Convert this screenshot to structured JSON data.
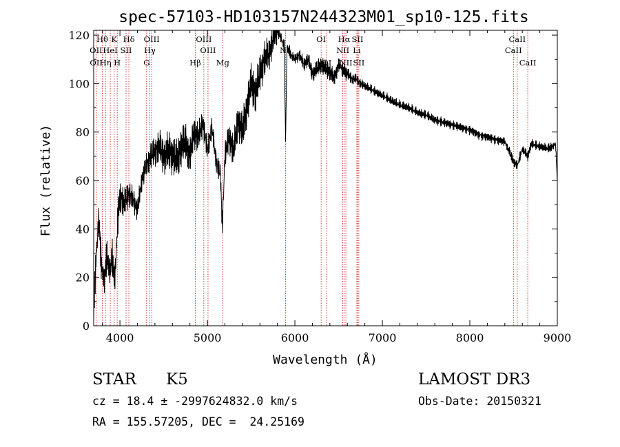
{
  "chart_data": {
    "type": "line",
    "title": "spec-57103-HD103157N244323M01_sp10-125.fits",
    "xlabel": "Wavelength (Å)",
    "ylabel": "Flux (relative)",
    "xlim": [
      3700,
      9000
    ],
    "ylim": [
      0,
      122
    ],
    "xticks": [
      4000,
      5000,
      6000,
      7000,
      8000,
      9000
    ],
    "yticks": [
      0,
      20,
      40,
      60,
      80,
      100,
      120
    ],
    "xtick_labels": [
      "4000",
      "5000",
      "6000",
      "7000",
      "8000",
      "9000"
    ],
    "ytick_labels": [
      "0",
      "20",
      "40",
      "60",
      "80",
      "100",
      "120"
    ],
    "grid": false,
    "series": [
      {
        "x": [
          3700,
          3730,
          3760,
          3790,
          3820,
          3850,
          3880,
          3910,
          3940,
          3970,
          4000,
          4050,
          4100,
          4150,
          4200,
          4250,
          4300,
          4350,
          4400,
          4450,
          4500,
          4550,
          4600,
          4650,
          4700,
          4750,
          4800,
          4850,
          4900,
          4950,
          5000,
          5050,
          5100,
          5150,
          5170,
          5200,
          5250,
          5300,
          5350,
          5400,
          5450,
          5500,
          5550,
          5600,
          5650,
          5700,
          5750,
          5800,
          5850,
          5880,
          5893,
          5910,
          5950,
          6000,
          6050,
          6100,
          6150,
          6200,
          6250,
          6300,
          6350,
          6400,
          6450,
          6500,
          6563,
          6600,
          6650,
          6700,
          6750,
          6800,
          6900,
          7000,
          7100,
          7200,
          7300,
          7400,
          7500,
          7600,
          7700,
          7800,
          7900,
          8000,
          8100,
          8200,
          8300,
          8400,
          8498,
          8542,
          8600,
          8662,
          8700,
          8800,
          8900,
          8980,
          9000
        ],
        "y": [
          5,
          30,
          44,
          25,
          18,
          30,
          22,
          28,
          18,
          40,
          54,
          50,
          55,
          52,
          48,
          60,
          66,
          70,
          72,
          74,
          70,
          72,
          71,
          68,
          74,
          76,
          70,
          80,
          78,
          84,
          72,
          82,
          68,
          62,
          40,
          70,
          78,
          72,
          85,
          80,
          90,
          100,
          96,
          104,
          110,
          112,
          118,
          122,
          118,
          115,
          75,
          115,
          112,
          110,
          112,
          108,
          110,
          104,
          106,
          108,
          106,
          105,
          102,
          108,
          105,
          104,
          102,
          102,
          100,
          99,
          97,
          95,
          93,
          91,
          90,
          88,
          87,
          85,
          84,
          83,
          82,
          81,
          79,
          78,
          77,
          76,
          68,
          66,
          73,
          70,
          75,
          74,
          73,
          75,
          60
        ]
      }
    ],
    "line_labels": [
      {
        "label": "Hθ",
        "x": 3798,
        "row": 1
      },
      {
        "label": "OII",
        "x": 3727,
        "row": 2
      },
      {
        "label": "OII",
        "x": 3729,
        "row": 3
      },
      {
        "label": "K",
        "x": 3934,
        "row": 1
      },
      {
        "label": "HeI",
        "x": 3889,
        "row": 2
      },
      {
        "label": "Hη",
        "x": 3835,
        "row": 3
      },
      {
        "label": "Hδ",
        "x": 4102,
        "row": 1
      },
      {
        "label": "SII",
        "x": 4070,
        "row": 2
      },
      {
        "label": "H",
        "x": 3969,
        "row": 3
      },
      {
        "label": "OIII",
        "x": 4363,
        "row": 1
      },
      {
        "label": "Hγ",
        "x": 4341,
        "row": 2
      },
      {
        "label": "G",
        "x": 4305,
        "row": 3
      },
      {
        "label": "OIII",
        "x": 4959,
        "row": 1
      },
      {
        "label": "OIII",
        "x": 5007,
        "row": 2
      },
      {
        "label": "Hβ",
        "x": 4861,
        "row": 3
      },
      {
        "label": "Mg",
        "x": 5175,
        "row": 3
      },
      {
        "label": "Na",
        "x": 5893,
        "row": 2
      },
      {
        "label": "OI",
        "x": 6300,
        "row": 1
      },
      {
        "label": "OI",
        "x": 6364,
        "row": 3
      },
      {
        "label": "Hα",
        "x": 6563,
        "row": 1
      },
      {
        "label": "SII",
        "x": 6716,
        "row": 1
      },
      {
        "label": "NII",
        "x": 6548,
        "row": 2
      },
      {
        "label": "Li",
        "x": 6708,
        "row": 2
      },
      {
        "label": "NII",
        "x": 6583,
        "row": 3
      },
      {
        "label": "SII",
        "x": 6731,
        "row": 3
      },
      {
        "label": "CaII",
        "x": 8542,
        "row": 1
      },
      {
        "label": "CaII",
        "x": 8498,
        "row": 2
      },
      {
        "label": "CaII",
        "x": 8662,
        "row": 3
      }
    ],
    "marker_lines_x": [
      3727,
      3798,
      3835,
      3889,
      3934,
      3969,
      4070,
      4102,
      4305,
      4341,
      4363,
      4861,
      4959,
      5007,
      5175,
      5893,
      6300,
      6364,
      6548,
      6563,
      6583,
      6708,
      6716,
      6731,
      8498,
      8542,
      8662
    ],
    "colors": {
      "spectrum": "#000000",
      "marker": "#cc0000"
    }
  },
  "info": {
    "object_class": "STAR",
    "subclass": "K5",
    "survey": "LAMOST DR3",
    "cz": "cz = 18.4 ± -2997624832.0 km/s",
    "obs_date": "Obs-Date: 20150321",
    "coords": "RA = 155.57205, DEC =  24.25169"
  }
}
